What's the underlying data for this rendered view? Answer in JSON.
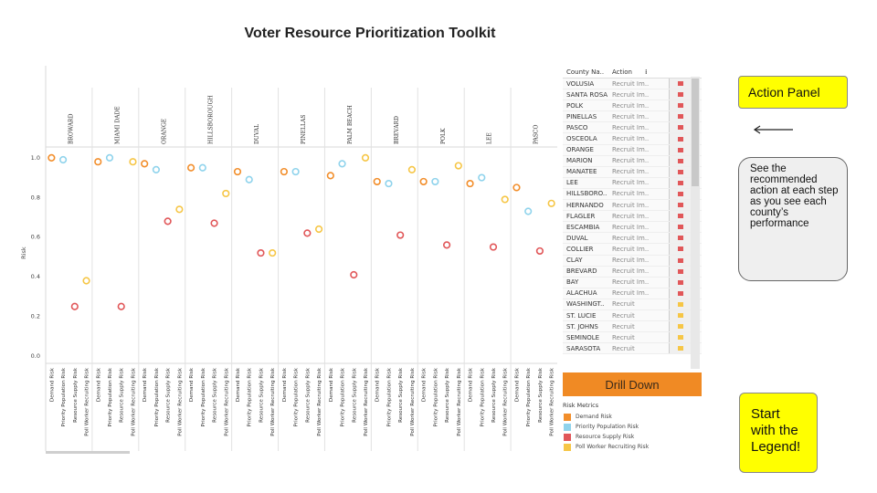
{
  "page": {
    "title": "Voter Resource Prioritization Toolkit"
  },
  "chart_data": {
    "type": "scatter",
    "title": "Voter Resource Prioritization Toolkit",
    "ylabel": "Risk",
    "ylim": [
      0,
      1.05
    ],
    "yticks": [
      "0.0",
      "0.2",
      "0.4",
      "0.6",
      "0.8",
      "1.0"
    ],
    "metrics": [
      "Demand Risk",
      "Priority Population Risk",
      "Resource Supply Risk",
      "Poll Worker Recruiting Risk"
    ],
    "colors": {
      "Demand Risk": "#f28e2b",
      "Priority Population Risk": "#8fd3ec",
      "Resource Supply Risk": "#e15759",
      "Poll Worker Recruiting Risk": "#f6c646"
    },
    "counties": [
      "BROWARD",
      "MIAMI DADE",
      "ORANGE",
      "HILLSBOROUGH",
      "DUVAL",
      "PINELLAS",
      "PALM BEACH",
      "BREVARD",
      "POLK",
      "LEE",
      "PASCO"
    ],
    "series": [
      {
        "name": "Demand Risk",
        "values": [
          1.0,
          0.98,
          0.97,
          0.95,
          0.93,
          0.93,
          0.91,
          0.88,
          0.88,
          0.87,
          0.85
        ]
      },
      {
        "name": "Priority Population Risk",
        "values": [
          0.99,
          1.0,
          0.94,
          0.95,
          0.89,
          0.93,
          0.97,
          0.87,
          0.88,
          0.9,
          0.73
        ]
      },
      {
        "name": "Resource Supply Risk",
        "values": [
          0.25,
          0.25,
          0.68,
          0.67,
          0.52,
          0.62,
          0.41,
          0.61,
          0.56,
          0.55,
          0.53
        ]
      },
      {
        "name": "Poll Worker Recruiting Risk",
        "values": [
          0.38,
          0.98,
          0.74,
          0.82,
          0.52,
          0.64,
          1.0,
          0.94,
          0.96,
          0.79,
          0.77
        ]
      }
    ],
    "grid": false
  },
  "action_panel": {
    "headers": {
      "county": "County Na..",
      "action": "Action",
      "sort": "⁝"
    },
    "rows": [
      {
        "county": "VOLUSIA",
        "action": "Recruit Im..",
        "flag": "#e15759"
      },
      {
        "county": "SANTA ROSA",
        "action": "Recruit Im..",
        "flag": "#e15759"
      },
      {
        "county": "POLK",
        "action": "Recruit Im..",
        "flag": "#e15759"
      },
      {
        "county": "PINELLAS",
        "action": "Recruit Im..",
        "flag": "#e15759"
      },
      {
        "county": "PASCO",
        "action": "Recruit Im..",
        "flag": "#e15759"
      },
      {
        "county": "OSCEOLA",
        "action": "Recruit Im..",
        "flag": "#e15759"
      },
      {
        "county": "ORANGE",
        "action": "Recruit Im..",
        "flag": "#e15759"
      },
      {
        "county": "MARION",
        "action": "Recruit Im..",
        "flag": "#e15759"
      },
      {
        "county": "MANATEE",
        "action": "Recruit Im..",
        "flag": "#e15759"
      },
      {
        "county": "LEE",
        "action": "Recruit Im..",
        "flag": "#e15759"
      },
      {
        "county": "HILLSBORO..",
        "action": "Recruit Im..",
        "flag": "#e15759"
      },
      {
        "county": "HERNANDO",
        "action": "Recruit Im..",
        "flag": "#e15759"
      },
      {
        "county": "FLAGLER",
        "action": "Recruit Im..",
        "flag": "#e15759"
      },
      {
        "county": "ESCAMBIA",
        "action": "Recruit Im..",
        "flag": "#e15759"
      },
      {
        "county": "DUVAL",
        "action": "Recruit Im..",
        "flag": "#e15759"
      },
      {
        "county": "COLLIER",
        "action": "Recruit Im..",
        "flag": "#e15759"
      },
      {
        "county": "CLAY",
        "action": "Recruit Im..",
        "flag": "#e15759"
      },
      {
        "county": "BREVARD",
        "action": "Recruit Im..",
        "flag": "#e15759"
      },
      {
        "county": "BAY",
        "action": "Recruit Im..",
        "flag": "#e15759"
      },
      {
        "county": "ALACHUA",
        "action": "Recruit Im..",
        "flag": "#e15759"
      },
      {
        "county": "WASHINGT..",
        "action": "Recruit",
        "flag": "#f6c646"
      },
      {
        "county": "ST. LUCIE",
        "action": "Recruit",
        "flag": "#f6c646"
      },
      {
        "county": "ST. JOHNS",
        "action": "Recruit",
        "flag": "#f6c646"
      },
      {
        "county": "SEMINOLE",
        "action": "Recruit",
        "flag": "#f6c646"
      },
      {
        "county": "SARASOTA",
        "action": "Recruit",
        "flag": "#f6c646"
      }
    ]
  },
  "drill_down": {
    "label": "Drill Down",
    "color": "#f08a24"
  },
  "legend": {
    "title": "Risk Metrics",
    "items": [
      {
        "label": "Demand Risk",
        "color": "#f28e2b"
      },
      {
        "label": "Priority Population Risk",
        "color": "#8fd3ec"
      },
      {
        "label": "Resource Supply Risk",
        "color": "#e15759"
      },
      {
        "label": "Poll Worker Recruiting Risk",
        "color": "#f6c646"
      }
    ]
  },
  "callouts": {
    "action_panel": "Action Panel",
    "note": "See the recommended action at each step as you  see each county’s performance",
    "legend": "Start with the Legend!",
    "highlight_color": "#ffff00"
  }
}
